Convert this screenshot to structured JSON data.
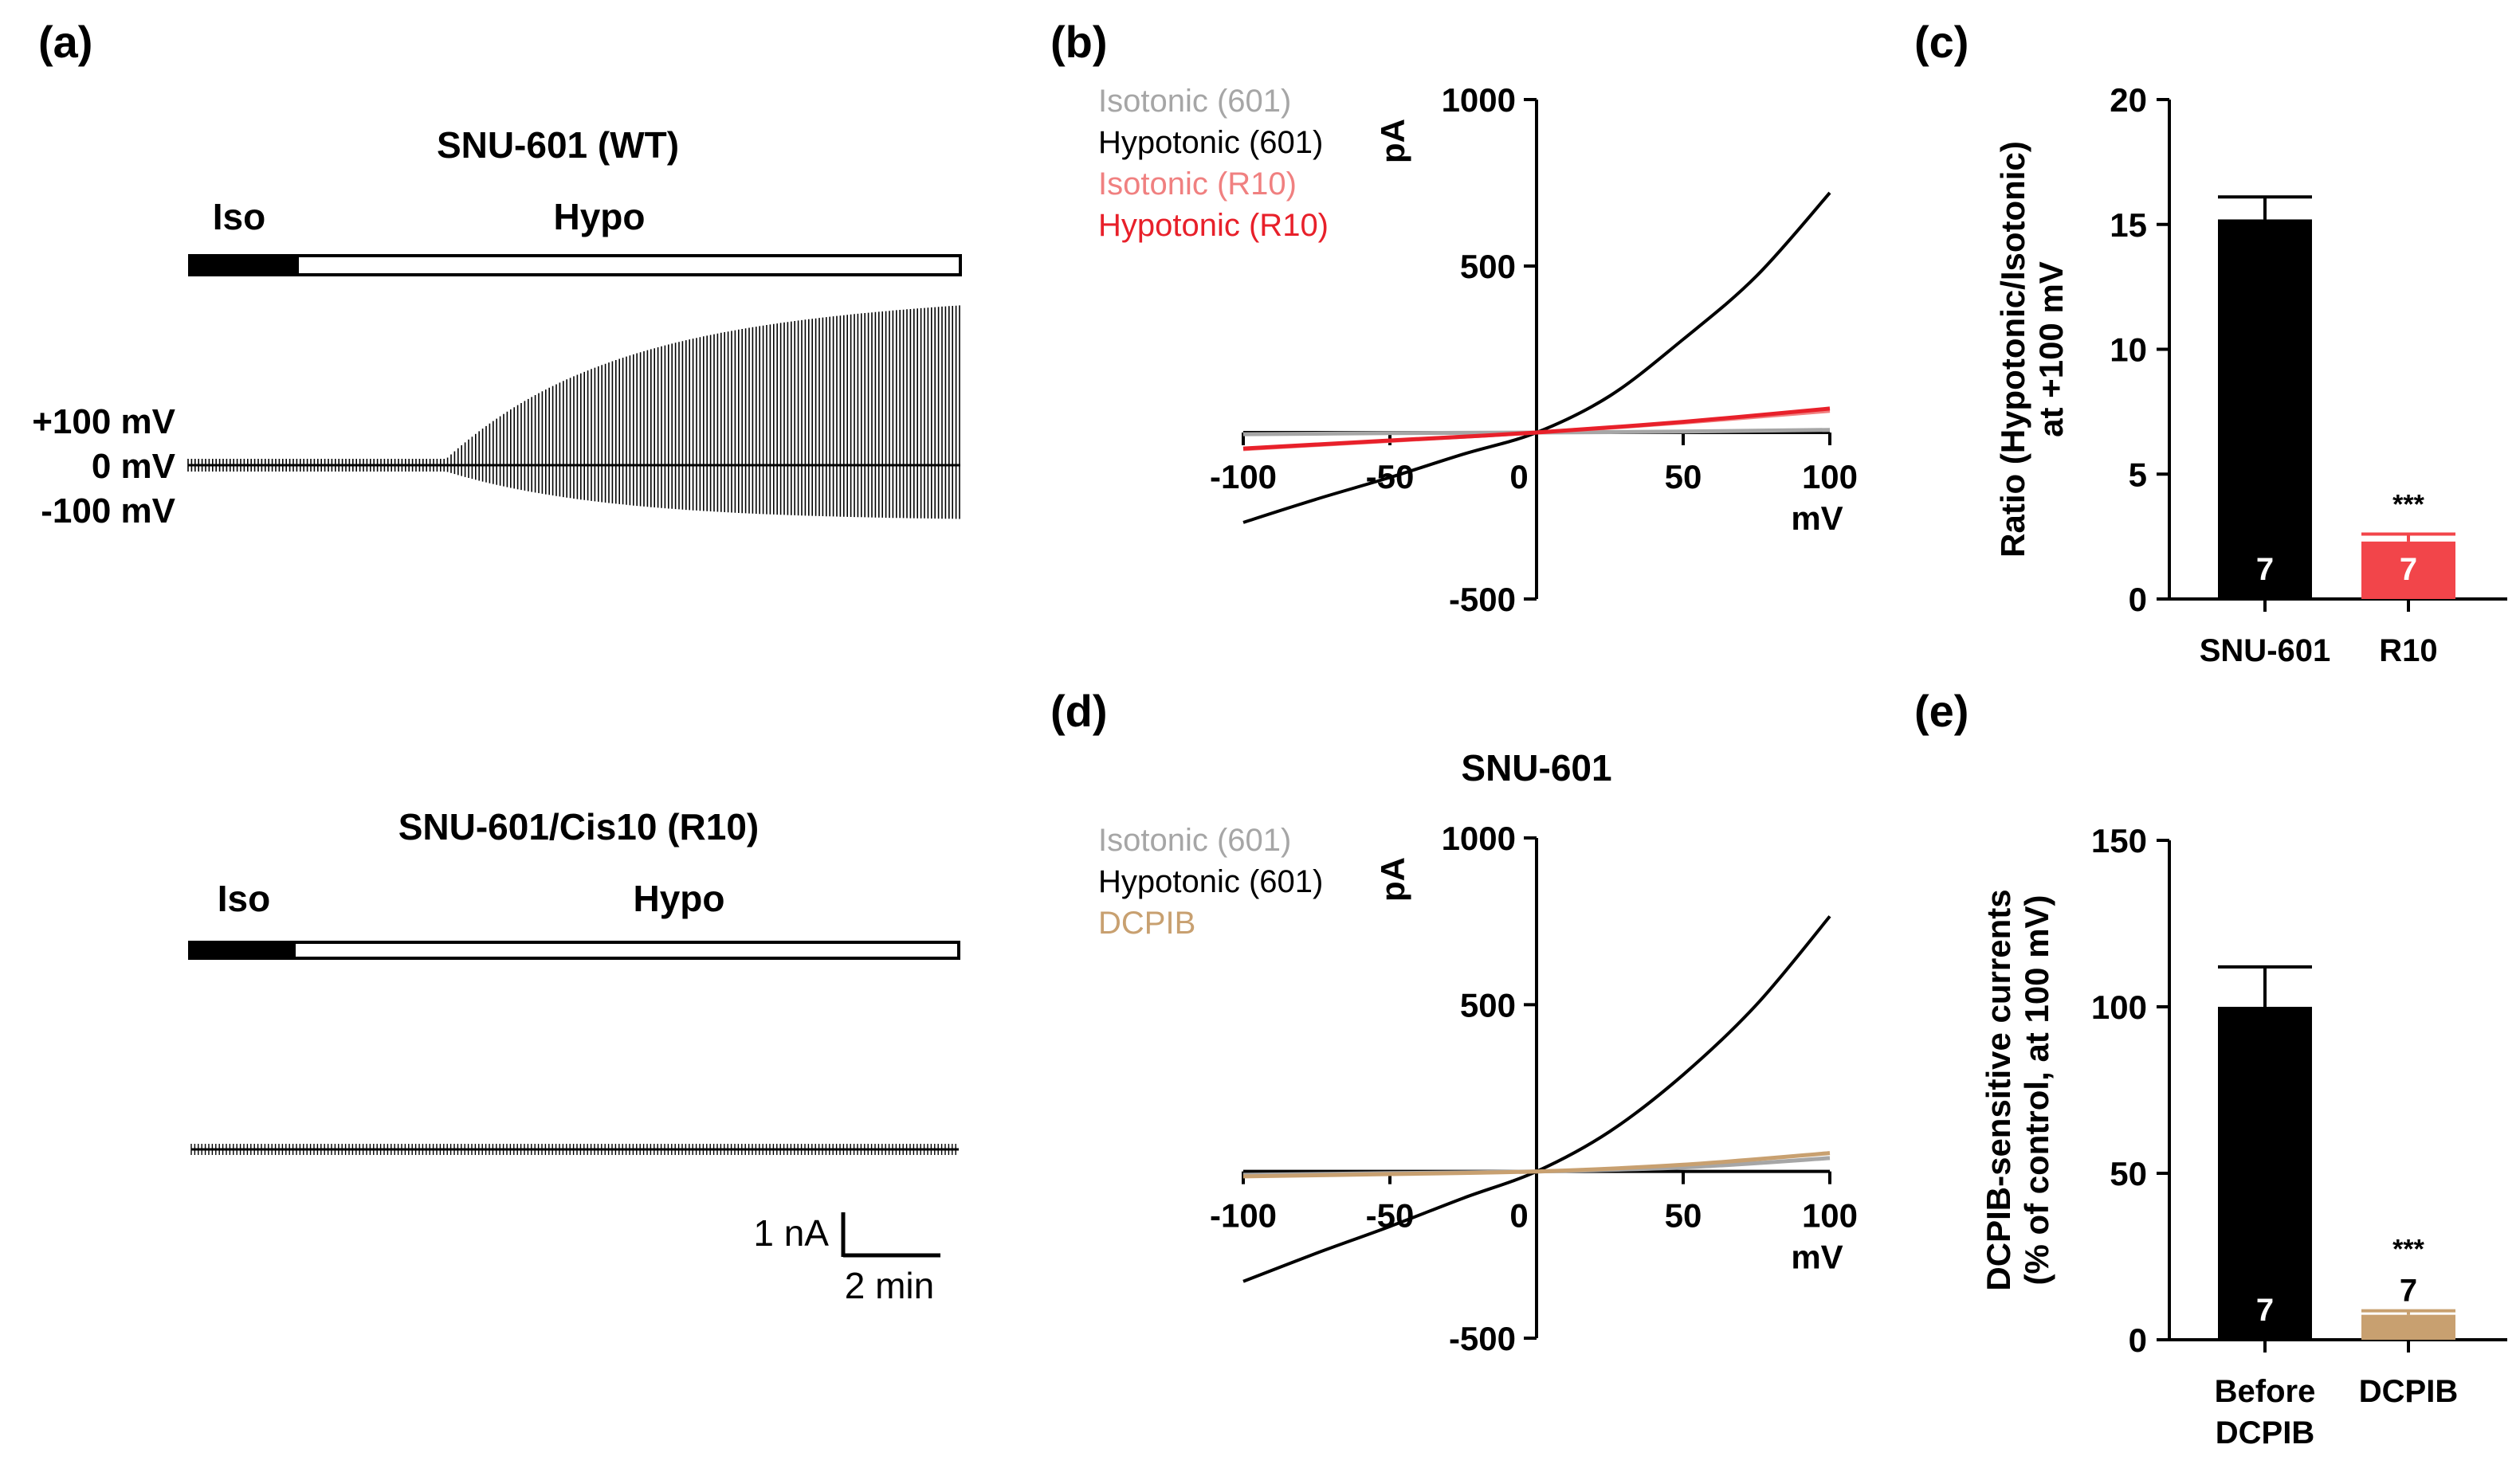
{
  "panels": {
    "a": {
      "letter": "(a)",
      "top": {
        "title": "SNU-601 (WT)",
        "iso_label": "Iso",
        "hypo_label": "Hypo",
        "voltage_labels": [
          "+100 mV",
          "0 mV",
          "-100 mV"
        ]
      },
      "bottom": {
        "title": "SNU-601/Cis10 (R10)",
        "iso_label": "Iso",
        "hypo_label": "Hypo"
      },
      "scale_bar": {
        "current": "1 nA",
        "time": "2 min"
      }
    },
    "b": {
      "letter": "(b)"
    },
    "c": {
      "letter": "(c)"
    },
    "d": {
      "letter": "(d)"
    },
    "e": {
      "letter": "(e)"
    }
  },
  "chart_data": [
    {
      "id": "b",
      "type": "line",
      "xlabel": "mV",
      "ylabel": "pA",
      "xlim": [
        -100,
        100
      ],
      "ylim": [
        -500,
        1000
      ],
      "xticks": [
        -100,
        -50,
        0,
        50,
        100
      ],
      "yticks": [
        -500,
        500,
        1000
      ],
      "legend_position": "top-left",
      "series": [
        {
          "name": "Isotonic (601)",
          "color": "#a6a6a6",
          "x": [
            -100,
            -50,
            0,
            50,
            100
          ],
          "y": [
            -5,
            -2,
            0,
            3,
            8
          ]
        },
        {
          "name": "Hypotonic (601)",
          "color": "#000000",
          "x": [
            -100,
            -75,
            -50,
            -25,
            0,
            25,
            50,
            75,
            100
          ],
          "y": [
            -270,
            -200,
            -135,
            -65,
            0,
            110,
            280,
            470,
            720
          ]
        },
        {
          "name": "Isotonic (R10)",
          "color": "#f08080",
          "x": [
            -100,
            -50,
            0,
            50,
            100
          ],
          "y": [
            -50,
            -25,
            0,
            30,
            65
          ]
        },
        {
          "name": "Hypotonic (R10)",
          "color": "#e8202a",
          "x": [
            -100,
            -50,
            0,
            50,
            100
          ],
          "y": [
            -48,
            -24,
            0,
            32,
            72
          ]
        }
      ]
    },
    {
      "id": "c",
      "type": "bar",
      "ylabel": "Ratio (Hypotonic/Isotonic) at +100 mV",
      "ylim": [
        0,
        20
      ],
      "yticks": [
        0,
        5,
        10,
        15,
        20
      ],
      "categories": [
        "SNU-601",
        "R10"
      ],
      "values": [
        15.2,
        2.3
      ],
      "errors": [
        0.9,
        0.3
      ],
      "n_labels": [
        "7",
        "7"
      ],
      "significance": [
        "",
        "***"
      ],
      "colors": [
        "#000000",
        "#f2454a"
      ]
    },
    {
      "id": "d",
      "type": "line",
      "title": "SNU-601",
      "xlabel": "mV",
      "ylabel": "pA",
      "xlim": [
        -100,
        100
      ],
      "ylim": [
        -500,
        1000
      ],
      "xticks": [
        -100,
        -50,
        0,
        50,
        100
      ],
      "yticks": [
        -500,
        500,
        1000
      ],
      "legend_position": "top-left",
      "series": [
        {
          "name": "Isotonic (601)",
          "color": "#a6a6a6",
          "x": [
            -100,
            -50,
            0,
            50,
            100
          ],
          "y": [
            -10,
            -5,
            0,
            12,
            40
          ]
        },
        {
          "name": "Hypotonic (601)",
          "color": "#000000",
          "x": [
            -100,
            -75,
            -50,
            -25,
            0,
            25,
            50,
            75,
            100
          ],
          "y": [
            -330,
            -245,
            -165,
            -80,
            0,
            120,
            290,
            500,
            765
          ]
        },
        {
          "name": "DCPIB",
          "color": "#c8a070",
          "x": [
            -100,
            -50,
            0,
            50,
            100
          ],
          "y": [
            -15,
            -8,
            0,
            20,
            55
          ]
        }
      ]
    },
    {
      "id": "e",
      "type": "bar",
      "ylabel": "DCPIB-sensitive currents (% of control, at 100 mV)",
      "ylim": [
        0,
        150
      ],
      "yticks": [
        0,
        50,
        100,
        150
      ],
      "categories": [
        "Before DCPIB",
        "DCPIB"
      ],
      "values": [
        100,
        7.5
      ],
      "errors": [
        12,
        1.2
      ],
      "n_labels": [
        "7",
        "7"
      ],
      "significance": [
        "",
        "***"
      ],
      "colors": [
        "#000000",
        "#c8a070"
      ]
    }
  ]
}
